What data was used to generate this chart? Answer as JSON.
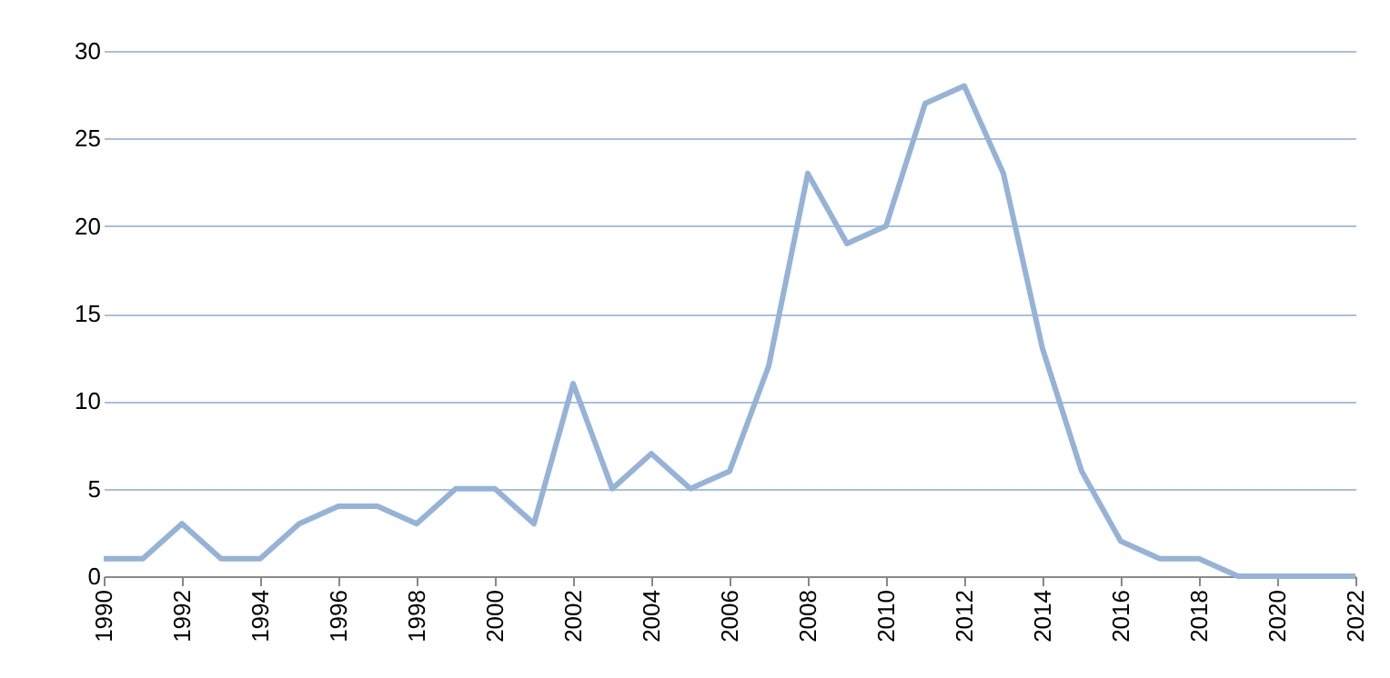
{
  "chart_data": {
    "type": "line",
    "x": [
      1990,
      1991,
      1992,
      1993,
      1994,
      1995,
      1996,
      1997,
      1998,
      1999,
      2000,
      2001,
      2002,
      2003,
      2004,
      2005,
      2006,
      2007,
      2008,
      2009,
      2010,
      2011,
      2012,
      2013,
      2014,
      2015,
      2016,
      2017,
      2018,
      2019,
      2020,
      2021,
      2022
    ],
    "series": [
      {
        "color": "#95b3d7",
        "values": [
          1,
          1,
          3,
          1,
          1,
          3,
          4,
          4,
          3,
          5,
          5,
          3,
          11,
          5,
          7,
          5,
          6,
          12,
          23,
          19,
          20,
          27,
          28,
          23,
          13,
          6,
          2,
          1,
          1,
          0,
          0,
          0,
          0
        ]
      }
    ],
    "xlim": [
      1990,
      2022
    ],
    "xticks": [
      1990,
      1992,
      1994,
      1996,
      1998,
      2000,
      2002,
      2004,
      2006,
      2008,
      2010,
      2012,
      2014,
      2016,
      2018,
      2020,
      2022
    ],
    "ylim": [
      0,
      30
    ],
    "yticks": [
      0,
      5,
      10,
      15,
      20,
      25,
      30
    ],
    "grid": "y",
    "marker": "none",
    "line_style": "solid"
  }
}
